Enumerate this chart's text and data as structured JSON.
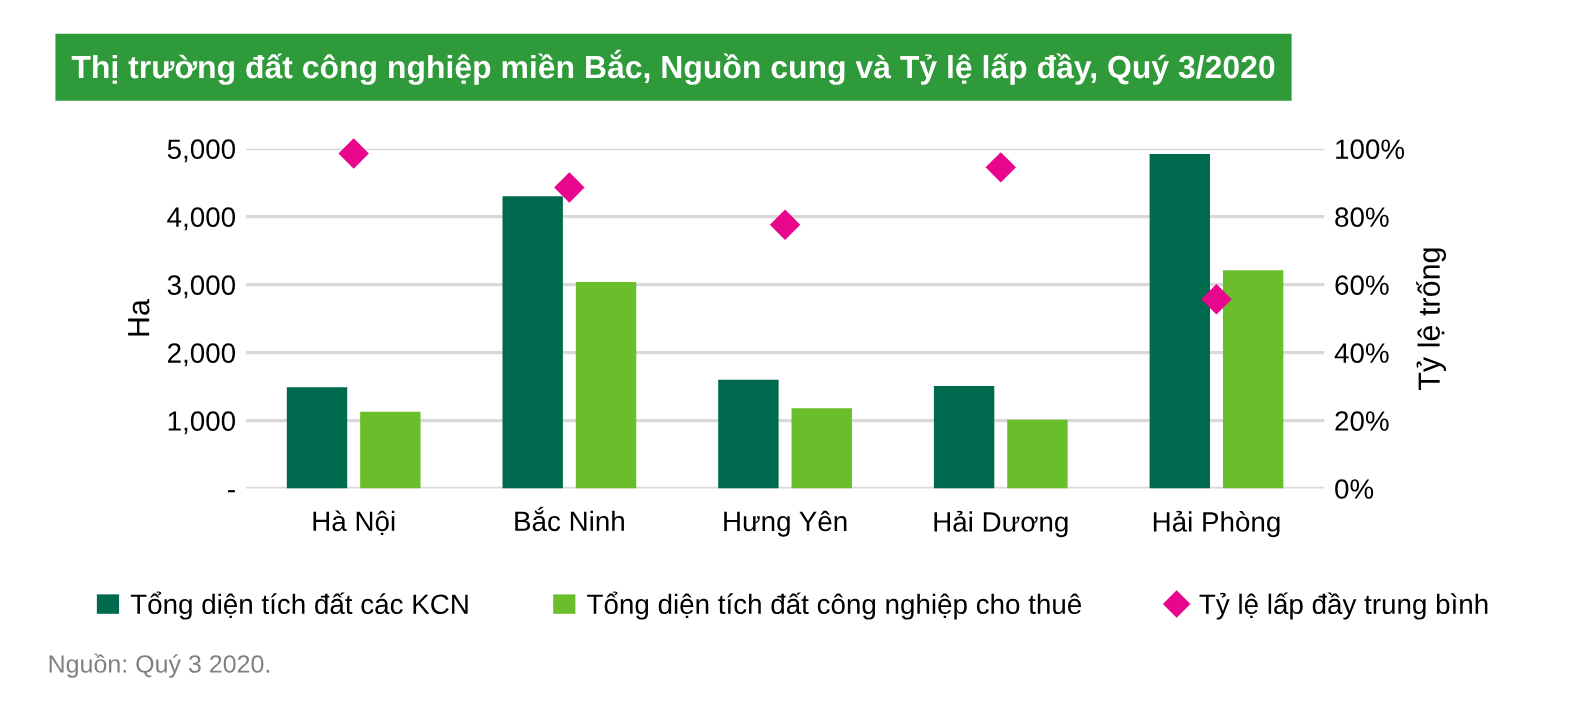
{
  "chart_data": {
    "type": "bar",
    "title": "Thị trường đất công nghiệp miền Bắc, Nguồn cung và Tỷ lệ lấp đầy, Quý 3/2020",
    "categories": [
      "Hà Nội",
      "Bắc Ninh",
      "Hưng Yên",
      "Hải Dương",
      "Hải Phòng"
    ],
    "series": [
      {
        "name": "Tổng diện tích đất các KCN",
        "color": "#006a4e",
        "values": [
          1490,
          4300,
          1600,
          1510,
          4920
        ]
      },
      {
        "name": "Tổng diện tích đất công nghiệp cho thuê",
        "color": "#6abd2b",
        "values": [
          1130,
          3040,
          1180,
          1010,
          3210
        ]
      },
      {
        "name": "Tỷ lệ lấp đầy trung bình",
        "color": "#e8068c",
        "type": "scatter",
        "axis": "y2",
        "marker": "diamond",
        "values": [
          98.6,
          88.6,
          77.6,
          94.5,
          55.7
        ]
      }
    ],
    "ylabel": "Ha",
    "y2label": "Tỷ lệ trống",
    "ylim": [
      0,
      5000
    ],
    "yticks": [
      {
        "value": 0,
        "label": "-"
      },
      {
        "value": 1000,
        "label": "1,000"
      },
      {
        "value": 2000,
        "label": "2,000"
      },
      {
        "value": 3000,
        "label": "3,000"
      },
      {
        "value": 4000,
        "label": "4,000"
      },
      {
        "value": 5000,
        "label": "5,000"
      }
    ],
    "y2lim": [
      0,
      100
    ],
    "y2ticks": [
      {
        "value": 0,
        "label": "0%"
      },
      {
        "value": 20,
        "label": "20%"
      },
      {
        "value": 40,
        "label": "40%"
      },
      {
        "value": 60,
        "label": "60%"
      },
      {
        "value": 80,
        "label": "80%"
      },
      {
        "value": 100,
        "label": "100%"
      }
    ],
    "grid": "y",
    "legend": "bottom",
    "annotations": [
      "Nguồn: Quý 3 2020."
    ]
  }
}
